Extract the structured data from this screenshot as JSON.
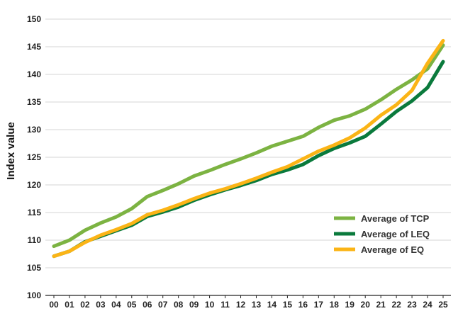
{
  "chart_data": {
    "type": "line",
    "title": "",
    "xlabel": "",
    "ylabel": "Index value",
    "ylim": [
      100,
      150
    ],
    "yticks": [
      "100",
      "105",
      "110",
      "115",
      "120",
      "125",
      "130",
      "135",
      "140",
      "145",
      "150"
    ],
    "categories": [
      "00",
      "01",
      "02",
      "03",
      "04",
      "05",
      "06",
      "07",
      "08",
      "09",
      "10",
      "11",
      "12",
      "13",
      "14",
      "15",
      "16",
      "17",
      "18",
      "19",
      "20",
      "21",
      "22",
      "23",
      "24",
      "25"
    ],
    "grid": "horizontal",
    "legend_position": "bottom-right",
    "series": [
      {
        "name": "Average of TCP",
        "color": "#7cb342",
        "values": [
          108.9,
          110.0,
          111.8,
          113.1,
          114.2,
          115.7,
          117.9,
          119.0,
          120.2,
          121.6,
          122.6,
          123.7,
          124.7,
          125.8,
          127.0,
          127.9,
          128.8,
          130.4,
          131.7,
          132.5,
          133.7,
          135.4,
          137.3,
          139.0,
          141.0,
          145.3
        ]
      },
      {
        "name": "Average of LEQ",
        "color": "#0a7a3c",
        "values": [
          107.1,
          108.0,
          109.7,
          110.7,
          111.7,
          112.7,
          114.3,
          115.1,
          116.0,
          117.2,
          118.2,
          119.1,
          119.9,
          120.8,
          121.9,
          122.7,
          123.7,
          125.3,
          126.6,
          127.6,
          128.8,
          131.0,
          133.3,
          135.2,
          137.6,
          142.3
        ]
      },
      {
        "name": "Average of EQ",
        "color": "#fbb416",
        "values": [
          107.1,
          108.0,
          109.6,
          110.9,
          111.9,
          113.0,
          114.6,
          115.4,
          116.4,
          117.5,
          118.5,
          119.3,
          120.2,
          121.2,
          122.3,
          123.3,
          124.7,
          126.1,
          127.2,
          128.5,
          130.3,
          132.6,
          134.5,
          137.1,
          142.0,
          146.1
        ]
      }
    ]
  }
}
